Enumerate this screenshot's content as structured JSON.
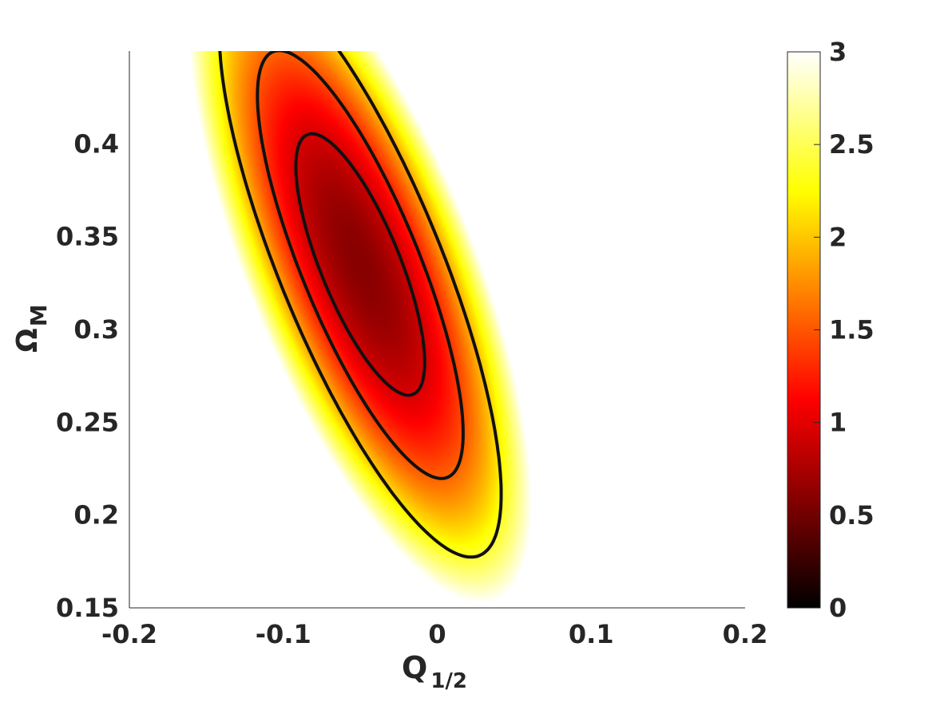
{
  "chart_data": {
    "type": "heatmap",
    "title": "",
    "xlabel": {
      "main": "Q",
      "sub": "1/2"
    },
    "ylabel": {
      "main": "Ω",
      "sub": "M"
    },
    "xlim": [
      -0.2,
      0.2
    ],
    "ylim": [
      0.15,
      0.45
    ],
    "x_ticks": [
      -0.2,
      -0.1,
      0,
      0.1,
      0.2
    ],
    "x_tick_labels": [
      "-0.2",
      "-0.1",
      "0",
      "0.1",
      "0.2"
    ],
    "y_ticks": [
      0.15,
      0.2,
      0.25,
      0.3,
      0.35,
      0.4
    ],
    "y_tick_labels": [
      "0.15",
      "0.2",
      "0.25",
      "0.3",
      "0.35",
      "0.4"
    ],
    "colorbar": {
      "colormap": "hot",
      "range": [
        0,
        3
      ],
      "ticks": [
        0,
        0.5,
        1,
        1.5,
        2,
        2.5,
        3
      ],
      "tick_labels": [
        "0",
        "0.5",
        "1",
        "1.5",
        "2",
        "2.5",
        "3"
      ]
    },
    "field": {
      "description_of_surface": "banded quadratic minimum, values clipped above 3 (white)",
      "minimum": {
        "x": -0.05,
        "y": 0.335,
        "value": 0.6
      },
      "ellipse_axis_angle_deg": -63,
      "gradient_scale": {
        "along_band": 0.13,
        "across_band": 0.046
      }
    },
    "contours": [
      {
        "level": "inner",
        "center": [
          -0.05,
          0.335
        ],
        "semi_major": 0.078,
        "semi_minor": 0.025,
        "angle_deg": -63
      },
      {
        "level": "middle",
        "center": [
          -0.05,
          0.335
        ],
        "semi_major": 0.128,
        "semi_minor": 0.037,
        "angle_deg": -63
      },
      {
        "level": "outer",
        "center": [
          -0.05,
          0.335
        ],
        "semi_major": 0.175,
        "semi_minor": 0.051,
        "angle_deg": -63
      }
    ],
    "grid": false,
    "legend": "none"
  }
}
